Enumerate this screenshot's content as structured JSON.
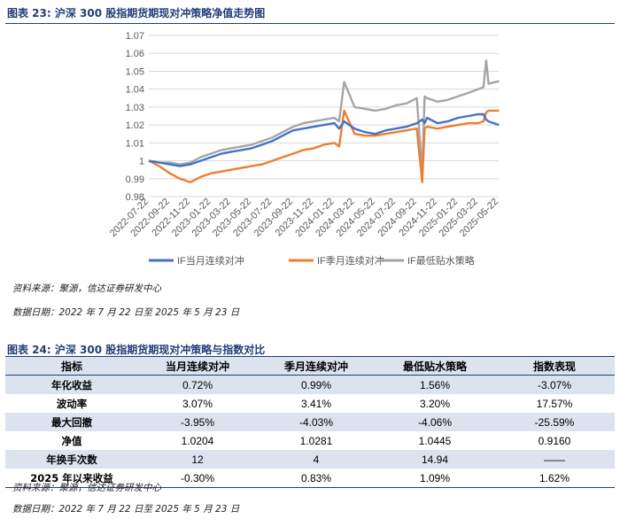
{
  "figure1": {
    "title": "图表 23:  沪深 300 股指期货期现对冲策略净值走势图",
    "source": "资料来源：聚源，信达证券研发中心",
    "date_range": "数据日期：2022 年 7 月 22 日至 2025 年 5 月 23 日"
  },
  "figure2": {
    "title": "图表 24:  沪深 300 股指期货期现对冲策略与指数对比",
    "source": "资料来源：聚源，信达证券研发中心",
    "date_range": "数据日期：2022 年 7 月 22 日至 2025 年 5 月 23 日"
  },
  "table": {
    "headers": [
      "指标",
      "当月连续对冲",
      "季月连续对冲",
      "最低贴水策略",
      "指数表现"
    ],
    "rows": [
      [
        "年化收益",
        "0.72%",
        "0.99%",
        "1.56%",
        "-3.07%"
      ],
      [
        "波动率",
        "3.07%",
        "3.41%",
        "3.20%",
        "17.57%"
      ],
      [
        "最大回撤",
        "-3.95%",
        "-4.03%",
        "-4.06%",
        "-25.59%"
      ],
      [
        "净值",
        "1.0204",
        "1.0281",
        "1.0445",
        "0.9160"
      ],
      [
        "年换手次数",
        "12",
        "4",
        "14.94",
        "——"
      ],
      [
        "2025 年以来收益",
        "-0.30%",
        "0.83%",
        "1.09%",
        "1.62%"
      ]
    ]
  },
  "chart_data": {
    "type": "line",
    "title": "",
    "xlabel": "",
    "ylabel": "",
    "ylim": [
      0.98,
      1.07
    ],
    "yticks": [
      0.98,
      0.99,
      1,
      1.01,
      1.02,
      1.03,
      1.04,
      1.05,
      1.06,
      1.07
    ],
    "ytick_labels": [
      "0.98",
      "0.99",
      "1",
      "1.01",
      "1.02",
      "1.03",
      "1.04",
      "1.05",
      "1.06",
      "1.07"
    ],
    "xtick_labels": [
      "2022-07-22",
      "2022-09-22",
      "2022-11-22",
      "2023-01-22",
      "2023-03-22",
      "2023-05-22",
      "2023-07-22",
      "2023-09-22",
      "2023-11-22",
      "2024-01-22",
      "2024-03-22",
      "2024-05-22",
      "2024-07-22",
      "2024-09-22",
      "2024-11-22",
      "2025-01-22",
      "2025-03-22",
      "2025-05-22"
    ],
    "grid": true,
    "legend_position": "bottom",
    "x": [
      "2022-07-22",
      "2022-08-22",
      "2022-09-22",
      "2022-10-22",
      "2022-11-22",
      "2022-12-22",
      "2023-01-22",
      "2023-02-22",
      "2023-03-22",
      "2023-04-22",
      "2023-05-22",
      "2023-06-22",
      "2023-07-22",
      "2023-08-22",
      "2023-09-22",
      "2023-10-22",
      "2023-11-22",
      "2023-12-22",
      "2024-01-22",
      "2024-02-05",
      "2024-02-20",
      "2024-03-22",
      "2024-04-22",
      "2024-05-22",
      "2024-06-22",
      "2024-07-22",
      "2024-08-22",
      "2024-09-22",
      "2024-10-08",
      "2024-10-15",
      "2024-10-22",
      "2024-11-22",
      "2024-12-22",
      "2025-01-22",
      "2025-02-22",
      "2025-03-22",
      "2025-04-07",
      "2025-04-15",
      "2025-04-22",
      "2025-05-23"
    ],
    "series": [
      {
        "name": "IF当月连续对冲",
        "color": "#4472c4",
        "values": [
          1.0,
          0.999,
          0.998,
          0.997,
          0.998,
          1.0,
          1.002,
          1.004,
          1.005,
          1.006,
          1.007,
          1.009,
          1.011,
          1.014,
          1.017,
          1.018,
          1.019,
          1.02,
          1.021,
          1.018,
          1.022,
          1.018,
          1.016,
          1.015,
          1.017,
          1.018,
          1.019,
          1.021,
          1.023,
          1.021,
          1.024,
          1.021,
          1.022,
          1.024,
          1.025,
          1.026,
          1.026,
          1.023,
          1.022,
          1.02
        ]
      },
      {
        "name": "IF季月连续对冲",
        "color": "#ed7d31",
        "values": [
          1.0,
          0.997,
          0.993,
          0.99,
          0.988,
          0.991,
          0.993,
          0.994,
          0.995,
          0.996,
          0.997,
          0.998,
          1.0,
          1.002,
          1.004,
          1.006,
          1.007,
          1.009,
          1.01,
          1.008,
          1.028,
          1.015,
          1.014,
          1.014,
          1.015,
          1.016,
          1.017,
          1.018,
          0.988,
          1.018,
          1.019,
          1.018,
          1.019,
          1.02,
          1.021,
          1.021,
          1.022,
          1.027,
          1.028,
          1.028
        ]
      },
      {
        "name": "IF最低贴水策略",
        "color": "#a5a5a5",
        "values": [
          1.0,
          0.999,
          0.999,
          0.998,
          0.999,
          1.002,
          1.004,
          1.006,
          1.007,
          1.008,
          1.009,
          1.011,
          1.013,
          1.016,
          1.019,
          1.021,
          1.022,
          1.023,
          1.024,
          1.022,
          1.044,
          1.03,
          1.029,
          1.028,
          1.029,
          1.031,
          1.032,
          1.035,
          0.994,
          1.036,
          1.035,
          1.033,
          1.034,
          1.036,
          1.038,
          1.04,
          1.041,
          1.056,
          1.043,
          1.0445
        ]
      }
    ]
  }
}
